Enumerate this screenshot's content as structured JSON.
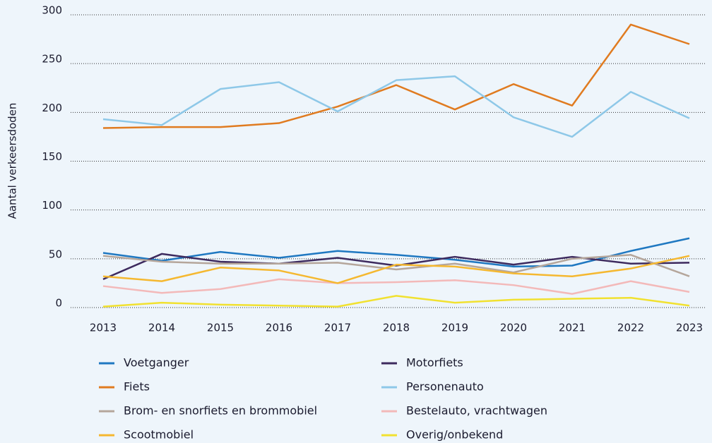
{
  "chart_data": {
    "type": "line",
    "y_label": "Aantal verkeersdoden",
    "x": [
      2013,
      2014,
      2015,
      2016,
      2017,
      2018,
      2019,
      2020,
      2021,
      2022,
      2023
    ],
    "xlim": [
      2013,
      2023
    ],
    "xticks": [
      2013,
      2014,
      2015,
      2016,
      2017,
      2018,
      2019,
      2020,
      2021,
      2022,
      2023
    ],
    "ylim": [
      0,
      300
    ],
    "yticks": [
      0,
      50,
      100,
      150,
      200,
      250,
      300
    ],
    "grid": true,
    "legend": "bottom",
    "series": [
      {
        "name": "Voetganger",
        "color": "#1f78c1",
        "values": [
          56,
          48,
          57,
          51,
          58,
          54,
          49,
          42,
          43,
          58,
          71
        ]
      },
      {
        "name": "Motorfiets",
        "color": "#3d2a5e",
        "values": [
          29,
          55,
          47,
          45,
          51,
          43,
          52,
          44,
          52,
          45,
          46
        ]
      },
      {
        "name": "Fiets",
        "color": "#e07b20",
        "values": [
          184,
          185,
          185,
          189,
          206,
          228,
          203,
          229,
          207,
          290,
          270
        ]
      },
      {
        "name": "Personenauto",
        "color": "#8ec8e8",
        "values": [
          193,
          187,
          224,
          231,
          201,
          233,
          237,
          195,
          175,
          221,
          194
        ]
      },
      {
        "name": "Brom- en snorfiets en brommobiel",
        "color": "#b5a69b",
        "values": [
          53,
          47,
          45,
          45,
          46,
          39,
          45,
          36,
          50,
          54,
          32
        ]
      },
      {
        "name": "Bestelauto, vrachtwagen",
        "color": "#f3b9b9",
        "values": [
          22,
          15,
          19,
          29,
          25,
          26,
          28,
          23,
          14,
          27,
          16
        ]
      },
      {
        "name": "Scootmobiel",
        "color": "#f5b830",
        "values": [
          32,
          27,
          41,
          38,
          25,
          44,
          42,
          35,
          32,
          40,
          53
        ]
      },
      {
        "name": "Overig/onbekend",
        "color": "#f1e130",
        "values": [
          1,
          5,
          3,
          2,
          1,
          12,
          5,
          8,
          9,
          10,
          2
        ]
      }
    ]
  }
}
